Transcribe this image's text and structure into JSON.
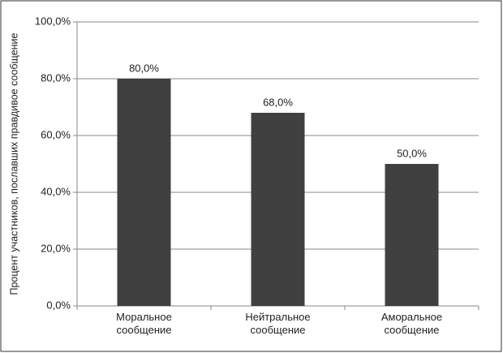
{
  "chart_data": {
    "type": "bar",
    "y_label": "Процент участников, пославших правдивое сообщение",
    "categories": [
      "Моральное сообщение",
      "Нейтральное сообщение",
      "Аморальное сообщение"
    ],
    "values": [
      80,
      68,
      50
    ],
    "value_labels": [
      "80,0%",
      "68,0%",
      "50,0%"
    ],
    "color": "#404040",
    "ylim": [
      0,
      100
    ],
    "yticks": [
      {
        "value": 0,
        "label": "0,0%"
      },
      {
        "value": 20,
        "label": "20,0%"
      },
      {
        "value": 40,
        "label": "40,0%"
      },
      {
        "value": 60,
        "label": "60,0%"
      },
      {
        "value": 80,
        "label": "80,0%"
      },
      {
        "value": 100,
        "label": "100,0%"
      }
    ],
    "grid": true
  }
}
